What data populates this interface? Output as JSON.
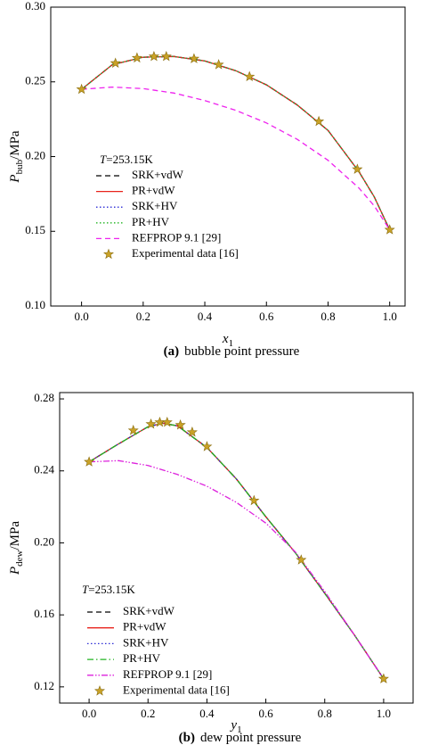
{
  "chart_data": [
    {
      "type": "line",
      "xlabel": {
        "text": "x",
        "subscript": "1"
      },
      "ylabel": {
        "text": "P",
        "subscript": "bub",
        "unit": "/MPa"
      },
      "annotation": {
        "italic": "T",
        "text": "=253.15K"
      },
      "caption": {
        "label": "(a)",
        "text": "bubble point pressure"
      },
      "xlim": [
        -0.1,
        1.05
      ],
      "xticks": [
        {
          "value": 0,
          "label": "0.0"
        },
        0.2,
        0.4,
        0.6,
        0.8,
        {
          "value": 1,
          "label": "1.0"
        }
      ],
      "ylim": [
        0.1,
        0.3
      ],
      "yticks": [
        {
          "value": 0.1,
          "label": "0.10"
        },
        0.15,
        {
          "value": 0.2,
          "label": "0.20"
        },
        0.25,
        {
          "value": 0.3,
          "label": "0.30"
        }
      ],
      "series": [
        {
          "name": "SRK+vdW",
          "color": "#000000",
          "dash": "dashed",
          "x": [
            0,
            0.1,
            0.2,
            0.3,
            0.4,
            0.5,
            0.6,
            0.7,
            0.8,
            0.9,
            0.95,
            1.0
          ],
          "values": [
            0.245,
            0.2615,
            0.2665,
            0.267,
            0.264,
            0.2575,
            0.248,
            0.2345,
            0.2175,
            0.19,
            0.173,
            0.151
          ]
        },
        {
          "name": "PR+vdW",
          "color": "#e8231b",
          "dash": "solid",
          "x": [
            0,
            0.1,
            0.2,
            0.3,
            0.4,
            0.5,
            0.6,
            0.7,
            0.8,
            0.9,
            0.95,
            1.0
          ],
          "values": [
            0.245,
            0.2615,
            0.2665,
            0.267,
            0.264,
            0.2575,
            0.248,
            0.2345,
            0.2175,
            0.19,
            0.173,
            0.151
          ]
        },
        {
          "name": "SRK+HV",
          "color": "#2b2bd6",
          "dash": "dotted",
          "x": [
            0,
            0.1,
            0.2,
            0.3,
            0.4,
            0.5,
            0.6,
            0.7,
            0.8,
            0.9,
            0.95,
            1.0
          ],
          "values": [
            0.245,
            0.2615,
            0.2665,
            0.267,
            0.264,
            0.2575,
            0.248,
            0.2345,
            0.2175,
            0.19,
            0.173,
            0.151
          ]
        },
        {
          "name": "PR+HV",
          "color": "#22b422",
          "dash": "dotted",
          "x": [
            0,
            0.1,
            0.2,
            0.3,
            0.4,
            0.5,
            0.6,
            0.7,
            0.8,
            0.9,
            0.95,
            1.0
          ],
          "values": [
            0.245,
            0.2615,
            0.2665,
            0.267,
            0.264,
            0.2575,
            0.248,
            0.2345,
            0.2175,
            0.19,
            0.173,
            0.151
          ]
        },
        {
          "name": "REFPROP 9.1 [29]",
          "color": "#ee22ee",
          "dash": "dashed",
          "x": [
            0,
            0.1,
            0.2,
            0.3,
            0.4,
            0.5,
            0.6,
            0.7,
            0.8,
            0.9,
            0.95,
            1.0
          ],
          "values": [
            0.245,
            0.2465,
            0.2455,
            0.2425,
            0.2375,
            0.231,
            0.2225,
            0.2115,
            0.1975,
            0.179,
            0.167,
            0.151
          ]
        },
        {
          "name": "Experimental data [16]",
          "color": "#c9a227",
          "marker": "star",
          "x": [
            0,
            0.11,
            0.18,
            0.235,
            0.275,
            0.365,
            0.445,
            0.545,
            0.77,
            0.895,
            1.0
          ],
          "values": [
            0.245,
            0.2625,
            0.266,
            0.267,
            0.267,
            0.2655,
            0.2615,
            0.2535,
            0.2235,
            0.1915,
            0.151
          ]
        }
      ]
    },
    {
      "type": "line",
      "xlabel": {
        "text": "y",
        "subscript": "1"
      },
      "ylabel": {
        "text": "P",
        "subscript": "dew",
        "unit": "/MPa"
      },
      "annotation": {
        "italic": "T",
        "text": "=253.15K"
      },
      "caption": {
        "label": "(b)",
        "text": "dew point pressure"
      },
      "xlim": [
        -0.1,
        1.1
      ],
      "xticks": [
        {
          "value": 0,
          "label": "0.0"
        },
        0.2,
        0.4,
        0.6,
        0.8,
        {
          "value": 1,
          "label": "1.0"
        }
      ],
      "ylim": [
        0.111,
        0.2835
      ],
      "yticks": [
        0.12,
        0.16,
        {
          "value": 0.2,
          "label": "0.20"
        },
        0.24,
        0.28
      ],
      "series": [
        {
          "name": "SRK+vdW",
          "color": "#000000",
          "dash": "dashed",
          "x": [
            0,
            0.1,
            0.2,
            0.25,
            0.3,
            0.4,
            0.5,
            0.6,
            0.7,
            0.8,
            0.9,
            1.0
          ],
          "values": [
            0.245,
            0.255,
            0.2645,
            0.2665,
            0.265,
            0.253,
            0.2355,
            0.2145,
            0.1945,
            0.172,
            0.149,
            0.1245
          ]
        },
        {
          "name": "PR+vdW",
          "color": "#e8231b",
          "dash": "solid",
          "x": [
            0,
            0.1,
            0.2,
            0.25,
            0.3,
            0.4,
            0.5,
            0.6,
            0.7,
            0.8,
            0.9,
            1.0
          ],
          "values": [
            0.245,
            0.255,
            0.2645,
            0.2665,
            0.265,
            0.253,
            0.2355,
            0.2145,
            0.1945,
            0.172,
            0.149,
            0.1245
          ]
        },
        {
          "name": "SRK+HV",
          "color": "#2b2bd6",
          "dash": "dotted",
          "x": [
            0,
            0.1,
            0.2,
            0.25,
            0.3,
            0.4,
            0.5,
            0.6,
            0.7,
            0.8,
            0.9,
            1.0
          ],
          "values": [
            0.245,
            0.255,
            0.2645,
            0.2665,
            0.265,
            0.253,
            0.2355,
            0.2145,
            0.1945,
            0.172,
            0.149,
            0.1245
          ]
        },
        {
          "name": "PR+HV",
          "color": "#22b422",
          "dash": "dashdot",
          "x": [
            0,
            0.1,
            0.2,
            0.25,
            0.3,
            0.4,
            0.5,
            0.6,
            0.7,
            0.8,
            0.9,
            1.0
          ],
          "values": [
            0.245,
            0.255,
            0.2645,
            0.2665,
            0.265,
            0.253,
            0.2355,
            0.2145,
            0.1945,
            0.172,
            0.149,
            0.1245
          ]
        },
        {
          "name": "REFPROP 9.1 [29]",
          "color": "#dd22dd",
          "dash": "dashdotdot",
          "x": [
            0,
            0.1,
            0.2,
            0.3,
            0.4,
            0.5,
            0.6,
            0.7,
            0.8,
            0.9,
            1.0
          ],
          "values": [
            0.245,
            0.2457,
            0.243,
            0.238,
            0.2315,
            0.2225,
            0.211,
            0.195,
            0.173,
            0.149,
            0.1245
          ]
        },
        {
          "name": "Experimental data [16]",
          "color": "#c9a227",
          "marker": "star",
          "x": [
            0,
            0.15,
            0.21,
            0.24,
            0.265,
            0.31,
            0.35,
            0.4,
            0.56,
            0.72,
            1.0
          ],
          "values": [
            0.245,
            0.2625,
            0.266,
            0.267,
            0.267,
            0.2655,
            0.2615,
            0.2535,
            0.2235,
            0.1905,
            0.1245
          ]
        }
      ]
    }
  ]
}
